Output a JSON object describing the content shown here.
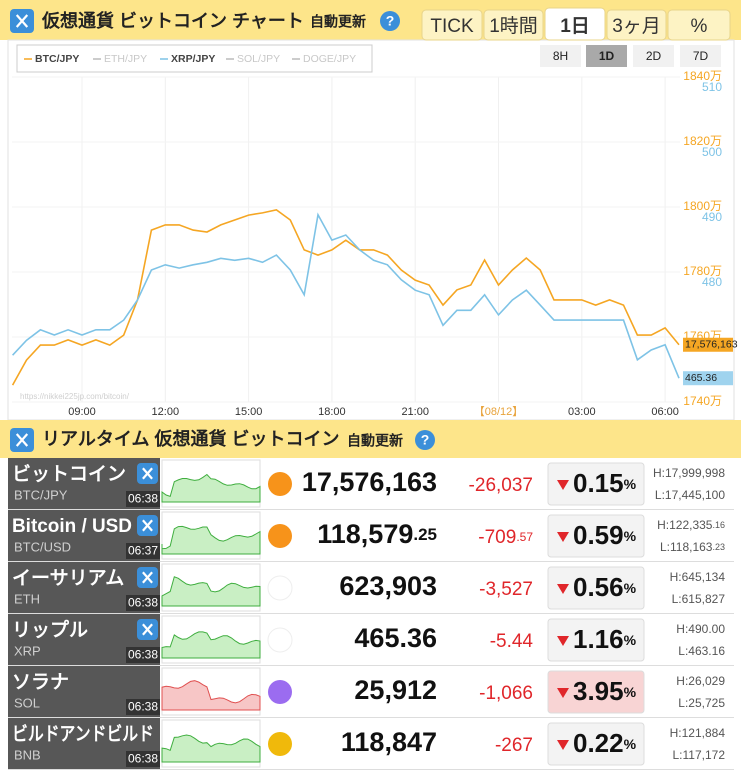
{
  "header": {
    "title": "仮想通貨 ビットコイン チャート",
    "auto": "自動更新",
    "help": "?",
    "tabs": [
      "TICK",
      "1時間",
      "1日",
      "3ヶ月",
      "%"
    ],
    "active_tab": 2
  },
  "ranges": {
    "buttons": [
      "8H",
      "1D",
      "2D",
      "7D"
    ],
    "active": 1
  },
  "chart_data": {
    "type": "line",
    "series": [
      {
        "name": "BTC/JPY",
        "color": "#f5a623",
        "visible": true,
        "last_label": "17,576,163",
        "values": [
          17452000,
          17529000,
          17575000,
          17575000,
          17591000,
          17575000,
          17591000,
          17575000,
          17606000,
          17714000,
          17929000,
          17945000,
          17945000,
          17929000,
          17923000,
          17945000,
          17960000,
          17975000,
          17982000,
          17991000,
          17960000,
          17868000,
          17852000,
          17868000,
          17898000,
          17868000,
          17868000,
          17852000,
          17806000,
          17775000,
          17760000,
          17698000,
          17745000,
          17760000,
          17837000,
          17760000,
          17806000,
          17843000,
          17806000,
          17714000,
          17714000,
          17714000,
          17698000,
          17714000,
          17698000,
          17606000,
          17606000,
          17628000,
          17576163
        ]
      },
      {
        "name": "ETH/JPY",
        "color": "#bbbbbb",
        "visible": false
      },
      {
        "name": "XRP/JPY",
        "color": "#7ec3e6",
        "visible": true,
        "axis": "y2",
        "last_label": "465.36",
        "values": [
          468.9,
          471.2,
          472.8,
          472.0,
          472.8,
          472.0,
          472.8,
          472.8,
          474.3,
          477.4,
          482.0,
          482.8,
          482.3,
          482.8,
          483.2,
          483.8,
          483.5,
          483.8,
          483.2,
          484.3,
          482.0,
          478.2,
          490.5,
          486.6,
          487.4,
          485.1,
          483.5,
          482.8,
          480.5,
          478.9,
          478.2,
          473.5,
          475.8,
          475.8,
          478.2,
          475.1,
          477.4,
          478.9,
          476.6,
          474.3,
          474.3,
          474.3,
          474.3,
          474.3,
          474.3,
          468.2,
          469.7,
          470.5,
          465.36
        ]
      },
      {
        "name": "SOL/JPY",
        "color": "#bbbbbb",
        "visible": false
      },
      {
        "name": "DOGE/JPY",
        "color": "#bbbbbb",
        "visible": false
      }
    ],
    "x": [
      "06:30",
      "07:00",
      "07:30",
      "08:00",
      "08:30",
      "09:00",
      "09:30",
      "10:00",
      "10:30",
      "11:00",
      "11:30",
      "12:00",
      "12:30",
      "13:00",
      "13:30",
      "14:00",
      "14:30",
      "15:00",
      "15:30",
      "16:00",
      "16:30",
      "17:00",
      "17:30",
      "18:00",
      "18:30",
      "19:00",
      "19:30",
      "20:00",
      "20:30",
      "21:00",
      "21:30",
      "22:00",
      "22:30",
      "23:00",
      "23:30",
      "00:00",
      "00:30",
      "01:00",
      "01:30",
      "02:00",
      "02:30",
      "03:00",
      "03:30",
      "04:00",
      "04:30",
      "05:00",
      "05:30",
      "06:00",
      "06:30"
    ],
    "xticks": [
      "09:00",
      "12:00",
      "15:00",
      "18:00",
      "21:00",
      {
        "value": "00:00",
        "label": "【08/12】"
      },
      "03:00",
      "06:00"
    ],
    "ylim": [
      17400000,
      18400000
    ],
    "yticks": [
      {
        "value": 17400000,
        "label": "1740万"
      },
      {
        "value": 17600000,
        "label": "1760万"
      },
      {
        "value": 17800000,
        "label": "1780万"
      },
      {
        "value": 18000000,
        "label": "1800万"
      },
      {
        "value": 18200000,
        "label": "1820万"
      },
      {
        "value": 18400000,
        "label": "1840万"
      }
    ],
    "y2lim": [
      461.7,
      511.7
    ],
    "y2ticks": [
      480,
      490,
      500,
      510
    ],
    "grid": true,
    "watermark": "https://nikkei225jp.com/bitcoin/"
  },
  "realtime": {
    "title": "リアルタイム 仮想通貨 ビットコイン",
    "auto": "自動更新",
    "help": "?",
    "percent_sign": "%",
    "rows": [
      {
        "name": "ビットコイン",
        "code": "BTC/JPY",
        "time": "06:38",
        "x_badge": true,
        "icon": "#f7931a",
        "trend": "up",
        "price": "17,576,163",
        "change": "-26,037",
        "pct": "0.15",
        "high": "H:17,999,998",
        "low": "L:17,445,100"
      },
      {
        "name": "Bitcoin / USD",
        "code": "BTC/USD",
        "time": "06:37",
        "x_badge": true,
        "icon": "#f7931a",
        "trend": "up",
        "price": "118,579",
        "price_dec": ".25",
        "change": "-709",
        "change_dec": ".57",
        "pct": "0.59",
        "high": "H:122,335",
        "high_dec": ".16",
        "low": "L:118,163",
        "low_dec": ".23"
      },
      {
        "name": "イーサリアム",
        "code": "ETH",
        "time": "06:38",
        "x_badge": true,
        "icon": "#ffffff",
        "trend": "up",
        "price": "623,903",
        "change": "-3,527",
        "pct": "0.56",
        "high": "H:645,134",
        "low": "L:615,827"
      },
      {
        "name": "リップル",
        "code": "XRP",
        "time": "06:38",
        "x_badge": true,
        "icon": "#ffffff",
        "trend": "up",
        "price": "465.36",
        "change": "-5.44",
        "pct": "1.16",
        "high": "H:490.00",
        "low": "L:463.16"
      },
      {
        "name": "ソラナ",
        "code": "SOL",
        "time": "06:38",
        "x_badge": false,
        "icon": "#9b6cf0",
        "trend": "down",
        "price": "25,912",
        "change": "-1,066",
        "pct": "3.95",
        "high": "H:26,029",
        "low": "L:25,725"
      },
      {
        "name": "ビルドアンドビルド",
        "code": "BNB",
        "time": "06:38",
        "x_badge": false,
        "icon": "#f0b90b",
        "trend": "up",
        "price": "118,847",
        "change": "-267",
        "pct": "0.22",
        "high": "H:121,884",
        "low": "L:117,172"
      }
    ]
  }
}
